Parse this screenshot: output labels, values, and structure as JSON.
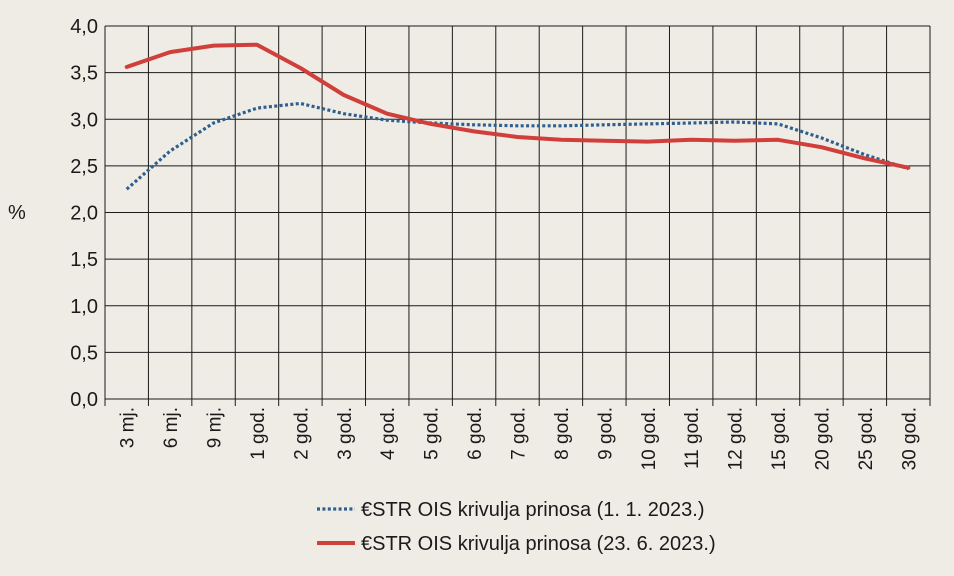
{
  "chart_data": {
    "type": "line",
    "title": "",
    "xlabel": "",
    "ylabel": "%",
    "ylim": [
      0,
      4
    ],
    "y_ticks": [
      "0,0",
      "0,5",
      "1,0",
      "1,5",
      "2,0",
      "2,5",
      "3,0",
      "3,5",
      "4,0"
    ],
    "y_tick_values": [
      0,
      0.5,
      1,
      1.5,
      2,
      2.5,
      3,
      3.5,
      4
    ],
    "categories": [
      "3 mj.",
      "6 mj.",
      "9 mj.",
      "1 god.",
      "2 god.",
      "3 god.",
      "4 god.",
      "5 god.",
      "6 god.",
      "7 god.",
      "8 god.",
      "9 god.",
      "10 god.",
      "11 god.",
      "12 god.",
      "15 god.",
      "20 god.",
      "25 god.",
      "30 god."
    ],
    "grid": true,
    "legend_position": "bottom-center",
    "series": [
      {
        "name": "€STR OIS krivulja prinosa (1. 1. 2023.)",
        "style": "dotted",
        "color": "#2e5f8e",
        "values": [
          2.25,
          2.66,
          2.96,
          3.12,
          3.17,
          3.06,
          2.99,
          2.96,
          2.94,
          2.93,
          2.93,
          2.94,
          2.95,
          2.96,
          2.97,
          2.95,
          2.8,
          2.62,
          2.47
        ]
      },
      {
        "name": "€STR OIS krivulja prinosa (23. 6. 2023.)",
        "style": "solid",
        "color": "#d13f3a",
        "values": [
          3.56,
          3.72,
          3.79,
          3.8,
          3.55,
          3.26,
          3.06,
          2.95,
          2.87,
          2.81,
          2.78,
          2.77,
          2.76,
          2.78,
          2.77,
          2.78,
          2.7,
          2.58,
          2.48
        ]
      }
    ]
  }
}
